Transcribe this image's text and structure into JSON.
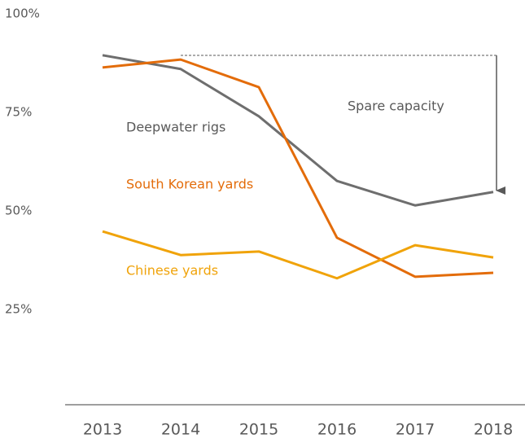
{
  "chart_data": {
    "type": "line",
    "categories": [
      "2013",
      "2014",
      "2015",
      "2016",
      "2017",
      "2018"
    ],
    "series": [
      {
        "name": "Deepwater rigs",
        "color": "#6e6e6e",
        "values": [
          89.5,
          86,
          74,
          57.6,
          51.4,
          54.8
        ]
      },
      {
        "name": "South Korean yards",
        "color": "#e36c0a",
        "values": [
          86.4,
          88.4,
          81.4,
          43.2,
          33.3,
          34.3
        ]
      },
      {
        "name": "Chinese yards",
        "color": "#f0a30a",
        "values": [
          44.8,
          38.8,
          39.7,
          32.9,
          41.3,
          38.2
        ]
      }
    ],
    "annotation": "Spare capacity",
    "ylim": [
      0,
      100
    ],
    "yticks": [
      {
        "value": 25,
        "label": "25%"
      },
      {
        "value": 50,
        "label": "50%"
      },
      {
        "value": 75,
        "label": "75%"
      },
      {
        "value": 100,
        "label": "100%"
      }
    ],
    "grid": false
  }
}
